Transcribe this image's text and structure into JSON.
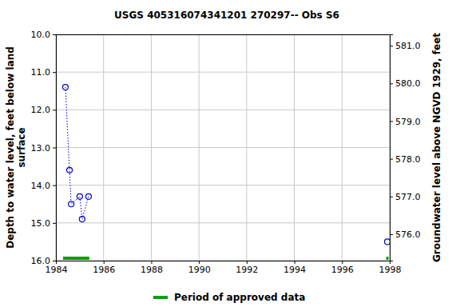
{
  "chart_data": {
    "type": "line",
    "title": "USGS 405316074341201 270297-- Obs S6",
    "ylabel": [
      "Depth to water level, feet below land",
      "surface"
    ],
    "y2label": "Groundwater level above NGVD 1929, feet",
    "x": [
      1984.4,
      1984.57,
      1984.64,
      1985.0,
      1985.1,
      1985.37,
      1991.0,
      1997.9
    ],
    "series": [
      {
        "color": "#0000cc",
        "marker": "circle",
        "line_style": "dotted",
        "values": [
          11.4,
          13.6,
          14.5,
          14.3,
          14.9,
          14.3,
          null,
          15.5
        ]
      }
    ],
    "approved_periods": {
      "name": "Period of approved data",
      "color": "#00a000",
      "ranges": [
        [
          1984.3,
          1985.4
        ],
        [
          1997.85,
          1997.95
        ]
      ]
    },
    "xlim": [
      1984,
      1998
    ],
    "xticks": [
      1984,
      1986,
      1988,
      1990,
      1992,
      1994,
      1996,
      1998
    ],
    "ylim": [
      10,
      16
    ],
    "yticks": [
      {
        "value": 10,
        "label": "10.0"
      },
      {
        "value": 11,
        "label": "11.0"
      },
      {
        "value": 12,
        "label": "12.0"
      },
      {
        "value": 13,
        "label": "13.0"
      },
      {
        "value": 14,
        "label": "14.0"
      },
      {
        "value": 15,
        "label": "15.0"
      },
      {
        "value": 16,
        "label": "16.0"
      }
    ],
    "y2lim": [
      581.3,
      575.3
    ],
    "y2ticks": [
      {
        "value": 576,
        "label": "576.0"
      },
      {
        "value": 577,
        "label": "577.0"
      },
      {
        "value": 578,
        "label": "578.0"
      },
      {
        "value": 579,
        "label": "579.0"
      },
      {
        "value": 580,
        "label": "580.0"
      },
      {
        "value": 581,
        "label": "581.0"
      }
    ],
    "grid": true,
    "legend": "bottom"
  }
}
